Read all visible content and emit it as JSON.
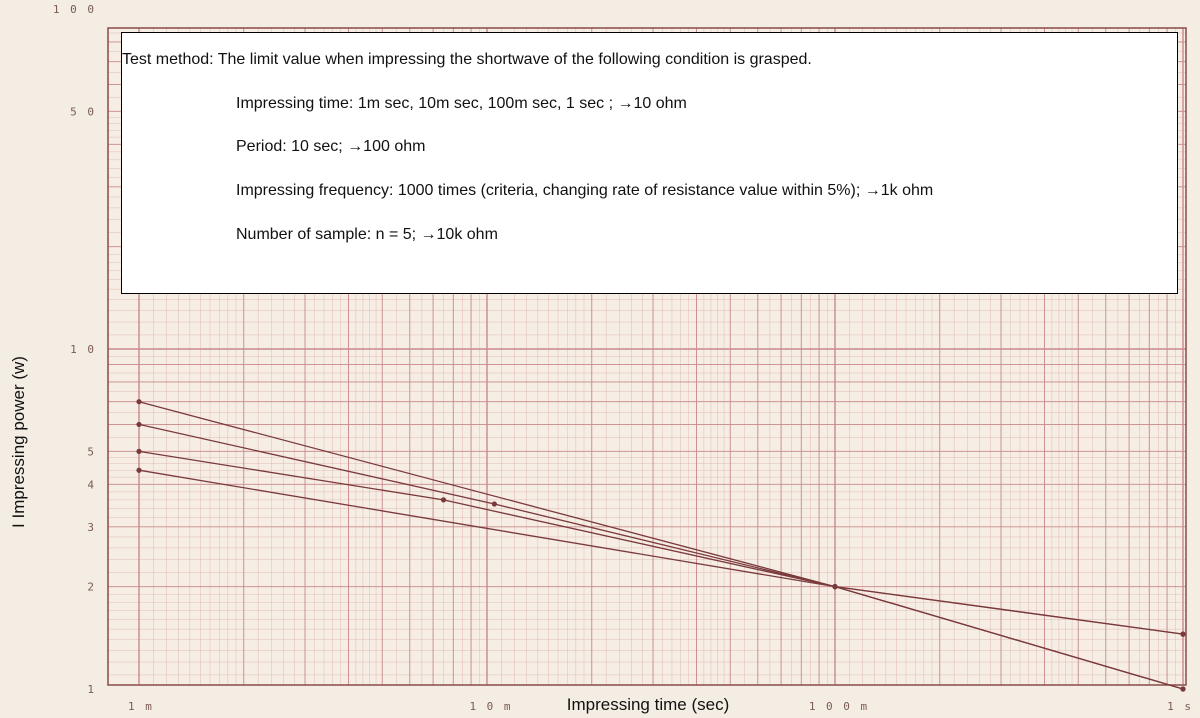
{
  "chart_data": {
    "type": "line",
    "title": "",
    "xlabel": "Impressing time (sec)",
    "ylabel": "I Impressing power (w)",
    "x_scale": "log",
    "y_scale": "log",
    "xlim_sec": [
      0.001,
      1
    ],
    "ylim_w": [
      1,
      100
    ],
    "grid": true,
    "x_ticks": [
      {
        "value": 0.001,
        "label": "1 m"
      },
      {
        "value": 0.01,
        "label": "1 0 m"
      },
      {
        "value": 0.1,
        "label": "1 0 0 m"
      },
      {
        "value": 1,
        "label": "1 s"
      }
    ],
    "y_ticks": [
      {
        "value": 100,
        "label": "1 0 0"
      },
      {
        "value": 50,
        "label": "5 0"
      },
      {
        "value": 10,
        "label": "1 0"
      },
      {
        "value": 5,
        "label": "5"
      },
      {
        "value": 4,
        "label": "4"
      },
      {
        "value": 3,
        "label": "3"
      },
      {
        "value": 2,
        "label": "2"
      },
      {
        "value": 1,
        "label": "1"
      }
    ],
    "series": [
      {
        "x": [
          0.001,
          0.1,
          1
        ],
        "y": [
          7.0,
          2.0,
          1.0
        ]
      },
      {
        "x": [
          0.001,
          0.0105,
          0.1,
          1
        ],
        "y": [
          6.0,
          3.5,
          2.0,
          1.0
        ]
      },
      {
        "x": [
          0.001,
          0.0075,
          0.1,
          1
        ],
        "y": [
          5.0,
          3.6,
          2.0,
          1.45
        ]
      },
      {
        "x": [
          0.001,
          0.1,
          1
        ],
        "y": [
          4.4,
          2.0,
          1.45
        ]
      }
    ],
    "line_color": "#7a3a3c",
    "grid_color": "#c98a8a"
  },
  "note": {
    "title": "Test method: The limit value when impressing the shortwave of the following condition is grasped.",
    "lines": [
      "Impressing time: 1m sec, 10m sec, 100m sec, 1 sec ; →10 ohm",
      "Period: 10 sec; →100 ohm",
      "Impressing frequency: 1000 times (criteria, changing rate of resistance value within 5%); →1k ohm",
      "Number of sample: n = 5; →10k ohm"
    ]
  }
}
